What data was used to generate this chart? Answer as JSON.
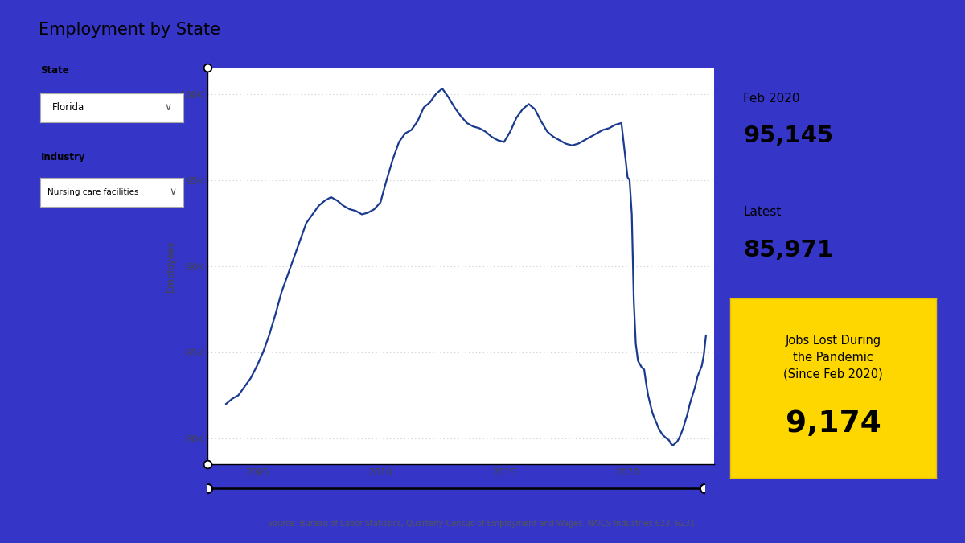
{
  "title": "Employment by State",
  "state_label": "State",
  "state_value": "Florida",
  "industry_label": "Industry",
  "industry_value": "Nursing care facilities",
  "ylabel": "Employees",
  "source": "Source: Bureau of Labor Statistics, Quarterly Census of Employment and Wages. NAICS Industries 623, 6231.",
  "feb2020_label": "Feb 2020",
  "feb2020_value": "95,145",
  "latest_label": "Latest",
  "latest_value": "85,971",
  "jobs_lost_title": "Jobs Lost During\nthe Pandemic\n(Since Feb 2020)",
  "jobs_lost_value": "9,174",
  "line_color": "#1a3a8f",
  "background_color": "#ffffff",
  "outer_background": "#3535c8",
  "yticks": [
    80000,
    85000,
    90000,
    95000,
    100000
  ],
  "ytick_labels": [
    "80K",
    "85K",
    "90K",
    "95K",
    "100K"
  ],
  "xticks": [
    2005,
    2010,
    2015,
    2020
  ],
  "ylim": [
    78500,
    101500
  ],
  "xlim": [
    2003.0,
    2023.5
  ],
  "x_data": [
    2003.75,
    2004.0,
    2004.25,
    2004.5,
    2004.75,
    2005.0,
    2005.25,
    2005.5,
    2005.75,
    2006.0,
    2006.25,
    2006.5,
    2006.75,
    2007.0,
    2007.25,
    2007.5,
    2007.75,
    2008.0,
    2008.25,
    2008.5,
    2008.75,
    2009.0,
    2009.25,
    2009.5,
    2009.75,
    2010.0,
    2010.25,
    2010.5,
    2010.75,
    2011.0,
    2011.25,
    2011.5,
    2011.75,
    2012.0,
    2012.25,
    2012.5,
    2012.75,
    2013.0,
    2013.25,
    2013.5,
    2013.75,
    2014.0,
    2014.25,
    2014.5,
    2014.75,
    2015.0,
    2015.25,
    2015.5,
    2015.75,
    2016.0,
    2016.25,
    2016.5,
    2016.75,
    2017.0,
    2017.25,
    2017.5,
    2017.75,
    2018.0,
    2018.25,
    2018.5,
    2018.75,
    2019.0,
    2019.25,
    2019.5,
    2019.75,
    2020.0,
    2020.08,
    2020.17,
    2020.25,
    2020.33,
    2020.42,
    2020.5,
    2020.58,
    2020.67,
    2020.75,
    2020.83,
    2021.0,
    2021.08,
    2021.17,
    2021.25,
    2021.33,
    2021.42,
    2021.5,
    2021.58,
    2021.67,
    2021.75,
    2021.83,
    2022.0,
    2022.08,
    2022.17,
    2022.25,
    2022.33,
    2022.42,
    2022.5,
    2022.58,
    2022.67,
    2022.75,
    2022.83,
    2023.0,
    2023.08,
    2023.17
  ],
  "y_data": [
    82000,
    82300,
    82500,
    83000,
    83500,
    84200,
    85000,
    86000,
    87200,
    88500,
    89500,
    90500,
    91500,
    92500,
    93000,
    93500,
    93800,
    94000,
    93800,
    93500,
    93300,
    93200,
    93000,
    93100,
    93300,
    93700,
    95000,
    96200,
    97200,
    97700,
    97900,
    98400,
    99200,
    99500,
    100000,
    100300,
    99800,
    99200,
    98700,
    98300,
    98100,
    98000,
    97800,
    97500,
    97300,
    97200,
    97800,
    98600,
    99100,
    99400,
    99100,
    98400,
    97800,
    97500,
    97300,
    97100,
    97000,
    97100,
    97300,
    97500,
    97700,
    97900,
    98000,
    98200,
    98300,
    95145,
    95000,
    93000,
    88000,
    85500,
    84500,
    84300,
    84100,
    84000,
    83200,
    82500,
    81500,
    81200,
    80900,
    80600,
    80400,
    80200,
    80100,
    80000,
    79900,
    79700,
    79600,
    79800,
    80000,
    80300,
    80600,
    81000,
    81400,
    81900,
    82300,
    82700,
    83100,
    83600,
    84200,
    84800,
    85971
  ]
}
